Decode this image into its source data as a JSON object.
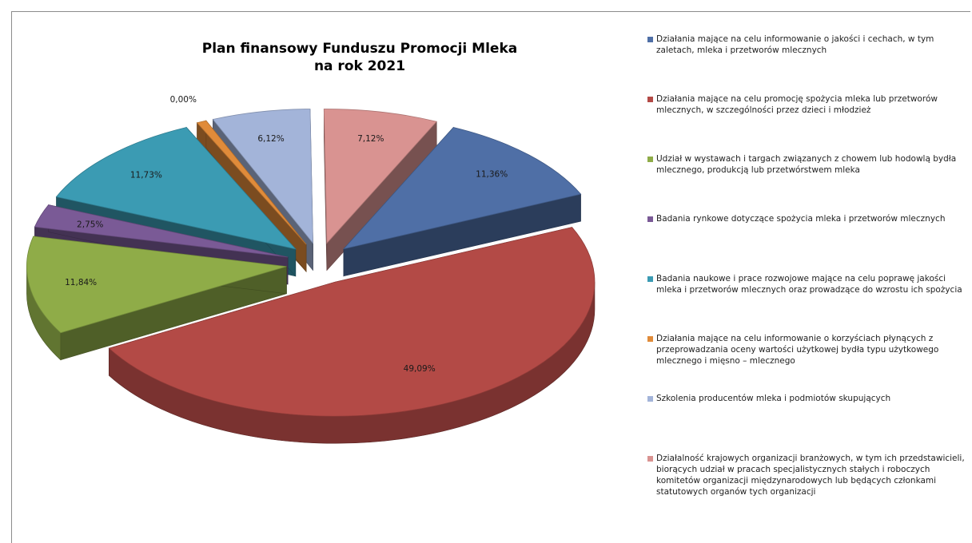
{
  "chart_data": {
    "type": "pie",
    "style": "3d-exploded",
    "title": [
      "Plan finansowy Funduszu Promocji Mleka",
      "na rok 2021"
    ],
    "legend_position": "right",
    "slices": [
      {
        "label": "Działania mające na celu informowanie o jakości i cechach, w tym zaletach, mleka i przetworów mlecznych",
        "value": 11.36,
        "value_label": "11,36%",
        "color": "#4f6fa6"
      },
      {
        "label": "Działania mające na celu promocję spożycia mleka lub przetworów mlecznych, w szczególności przez dzieci i młodzież",
        "value": 49.09,
        "value_label": "49,09%",
        "color": "#b34a46"
      },
      {
        "label": "Udział w wystawach i targach związanych z chowem lub hodowlą bydła mlecznego, produkcją lub przetwórstwem mleka",
        "value": 11.84,
        "value_label": "11,84%",
        "color": "#8fac48"
      },
      {
        "label": "Badania rynkowe dotyczące spożycia mleka i przetworów mlecznych",
        "value": 2.75,
        "value_label": "2,75%",
        "color": "#7a5a96"
      },
      {
        "label": "Badania naukowe i prace rozwojowe mające na celu poprawę jakości mleka i przetworów mlecznych oraz prowadzące do wzrostu ich spożycia",
        "value": 11.73,
        "value_label": "11,73%",
        "color": "#3b9bb3"
      },
      {
        "label": "Działania mające na celu informowanie o korzyściach płynących z przeprowadzania oceny wartości użytkowej bydła typu użytkowego mlecznego i mięsno – mlecznego",
        "value": 0.0,
        "value_label": "0,00%",
        "color": "#e08b3a"
      },
      {
        "label": "Szkolenia producentów mleka i podmiotów skupujących",
        "value": 6.12,
        "value_label": "6,12%",
        "color": "#a3b4d9"
      },
      {
        "label": "Działalność krajowych organizacji branżowych, w tym ich przedstawicieli, biorących udział w pracach specjalistycznych stałych i roboczych komitetów organizacji międzynarodowych lub będących członkami statutowych organów tych organizacji",
        "value": 7.12,
        "value_label": "7,12%",
        "color": "#d99391"
      }
    ]
  }
}
